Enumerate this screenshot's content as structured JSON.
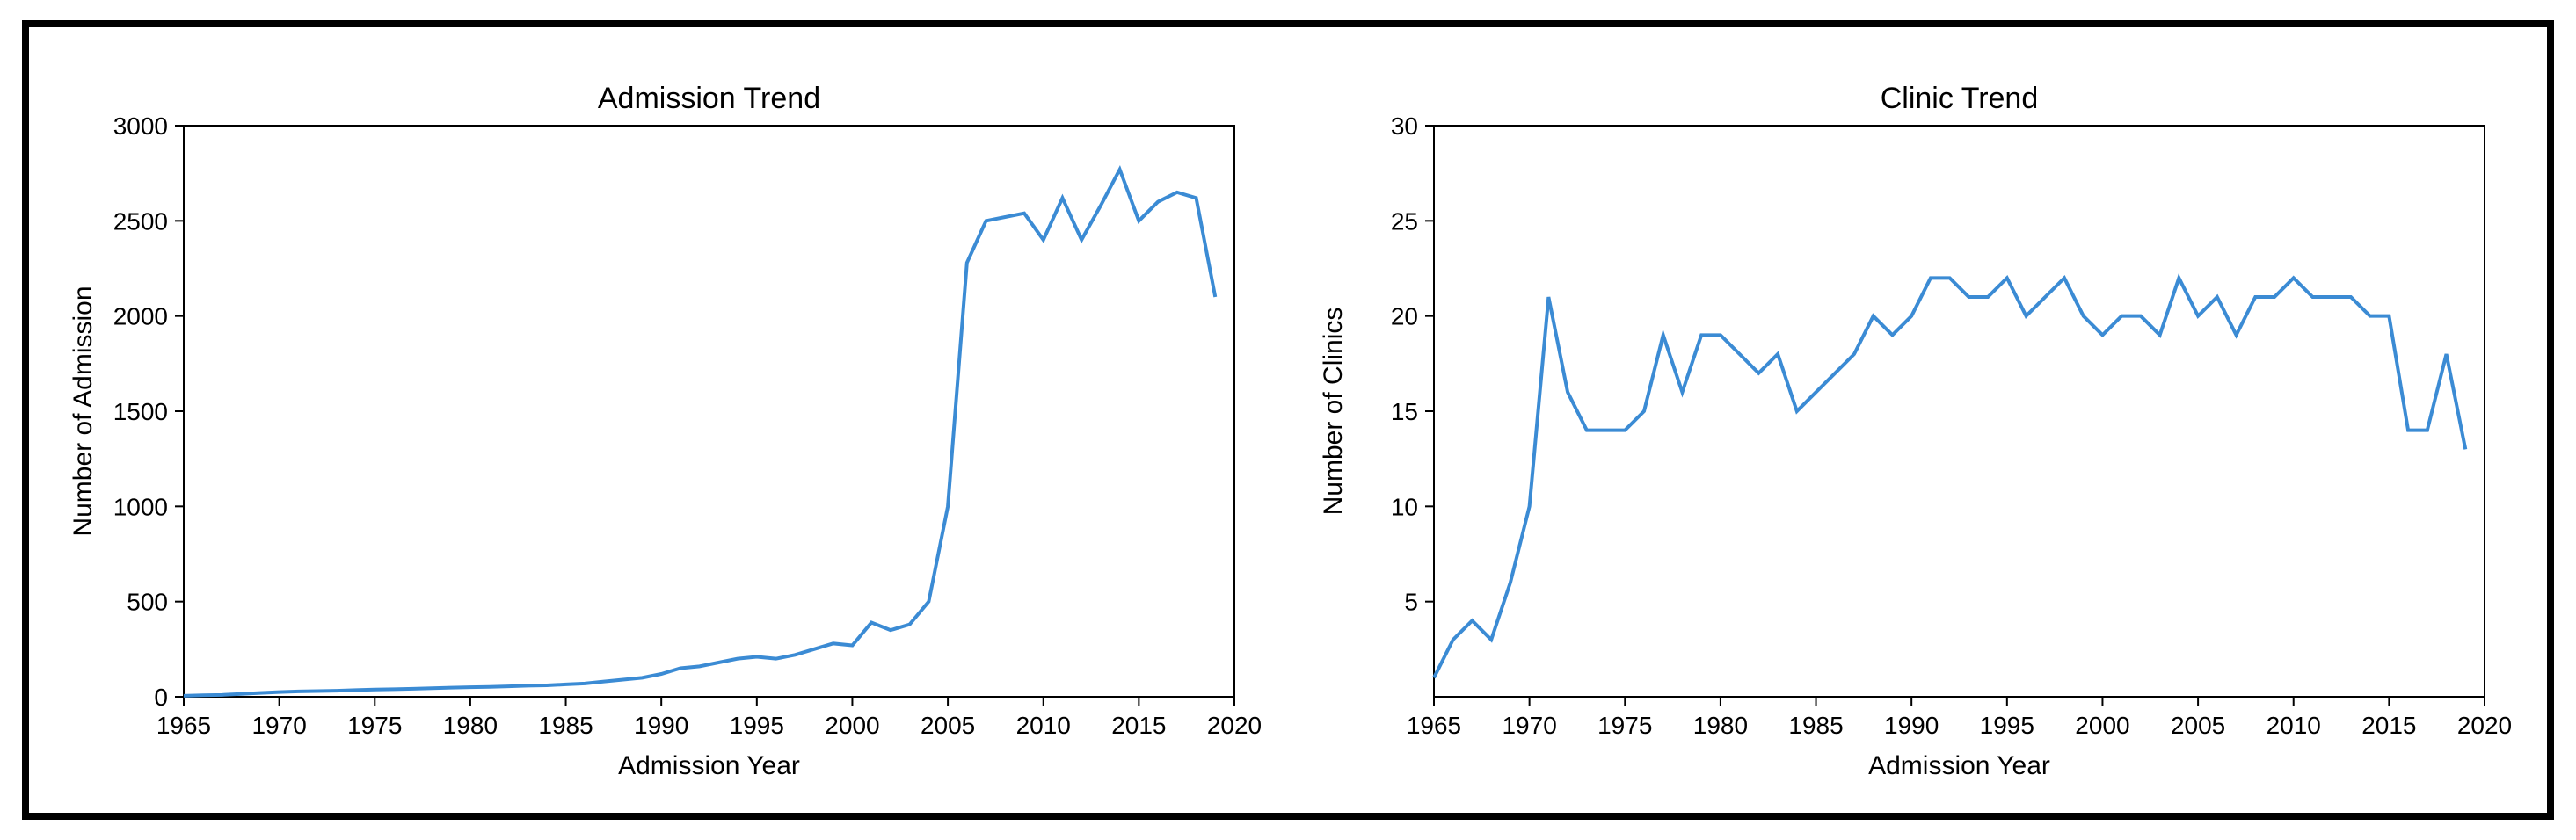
{
  "left_chart": {
    "type": "line",
    "title": "Admission Trend",
    "title_fontsize": 34,
    "xlabel": "Admission Year",
    "ylabel": "Number of Admission",
    "label_fontsize": 30,
    "tick_fontsize": 28,
    "xlim": [
      1965,
      2020
    ],
    "ylim": [
      0,
      3000
    ],
    "xticks": [
      1965,
      1970,
      1975,
      1980,
      1985,
      1990,
      1995,
      2000,
      2005,
      2010,
      2015,
      2020
    ],
    "yticks": [
      0,
      500,
      1000,
      1500,
      2000,
      2500,
      3000
    ],
    "line_color": "#3b8bd4",
    "line_width": 4,
    "background_color": "#ffffff",
    "border_color": "#000000",
    "x": [
      1965,
      1966,
      1967,
      1968,
      1969,
      1970,
      1971,
      1972,
      1973,
      1974,
      1975,
      1976,
      1977,
      1978,
      1979,
      1980,
      1981,
      1982,
      1983,
      1984,
      1985,
      1986,
      1987,
      1988,
      1989,
      1990,
      1991,
      1992,
      1993,
      1994,
      1995,
      1996,
      1997,
      1998,
      1999,
      2000,
      2001,
      2002,
      2003,
      2004,
      2005,
      2006,
      2007,
      2008,
      2009,
      2010,
      2011,
      2012,
      2013,
      2014,
      2015,
      2016,
      2017,
      2018,
      2019
    ],
    "y": [
      5,
      8,
      10,
      15,
      20,
      25,
      28,
      30,
      32,
      35,
      38,
      40,
      42,
      45,
      48,
      50,
      52,
      55,
      58,
      60,
      65,
      70,
      80,
      90,
      100,
      120,
      150,
      160,
      180,
      200,
      210,
      200,
      220,
      250,
      280,
      270,
      390,
      350,
      380,
      500,
      1000,
      2280,
      2500,
      2520,
      2540,
      2400,
      2620,
      2400,
      2580,
      2770,
      2500,
      2600,
      2650,
      2620,
      2100
    ]
  },
  "right_chart": {
    "type": "line",
    "title": "Clinic Trend",
    "title_fontsize": 34,
    "xlabel": "Admission Year",
    "ylabel": "Number of Clinics",
    "label_fontsize": 30,
    "tick_fontsize": 28,
    "xlim": [
      1965,
      2020
    ],
    "ylim": [
      0,
      30
    ],
    "xticks": [
      1965,
      1970,
      1975,
      1980,
      1985,
      1990,
      1995,
      2000,
      2005,
      2010,
      2015,
      2020
    ],
    "yticks": [
      5,
      10,
      15,
      20,
      25,
      30
    ],
    "line_color": "#3b8bd4",
    "line_width": 4,
    "background_color": "#ffffff",
    "border_color": "#000000",
    "x": [
      1965,
      1966,
      1967,
      1968,
      1969,
      1970,
      1971,
      1972,
      1973,
      1974,
      1975,
      1976,
      1977,
      1978,
      1979,
      1980,
      1981,
      1982,
      1983,
      1984,
      1985,
      1986,
      1987,
      1988,
      1989,
      1990,
      1991,
      1992,
      1993,
      1994,
      1995,
      1996,
      1997,
      1998,
      1999,
      2000,
      2001,
      2002,
      2003,
      2004,
      2005,
      2006,
      2007,
      2008,
      2009,
      2010,
      2011,
      2012,
      2013,
      2014,
      2015,
      2016,
      2017,
      2018,
      2019
    ],
    "y": [
      1,
      3,
      4,
      3,
      6,
      10,
      21,
      16,
      14,
      14,
      14,
      15,
      19,
      16,
      19,
      19,
      18,
      17,
      18,
      15,
      16,
      17,
      18,
      20,
      19,
      20,
      22,
      22,
      21,
      21,
      22,
      20,
      21,
      22,
      20,
      19,
      20,
      20,
      19,
      22,
      20,
      21,
      19,
      21,
      21,
      22,
      21,
      21,
      21,
      20,
      20,
      14,
      14,
      18,
      13
    ]
  }
}
